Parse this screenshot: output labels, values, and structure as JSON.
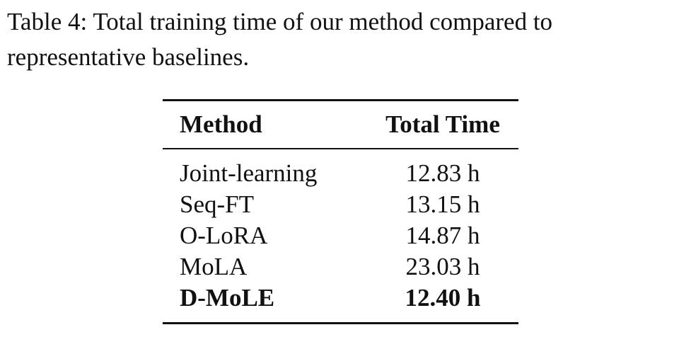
{
  "caption": "Table 4: Total training time of our method compared to representative baselines.",
  "table": {
    "headers": [
      "Method",
      "Total Time"
    ],
    "rows": [
      {
        "method": "Joint-learning",
        "time": "12.83 h",
        "bold": false
      },
      {
        "method": "Seq-FT",
        "time": "13.15 h",
        "bold": false
      },
      {
        "method": "O-LoRA",
        "time": "14.87 h",
        "bold": false
      },
      {
        "method": "MoLA",
        "time": "23.03 h",
        "bold": false
      },
      {
        "method": "D-MoLE",
        "time": "12.40 h",
        "bold": true
      }
    ]
  }
}
